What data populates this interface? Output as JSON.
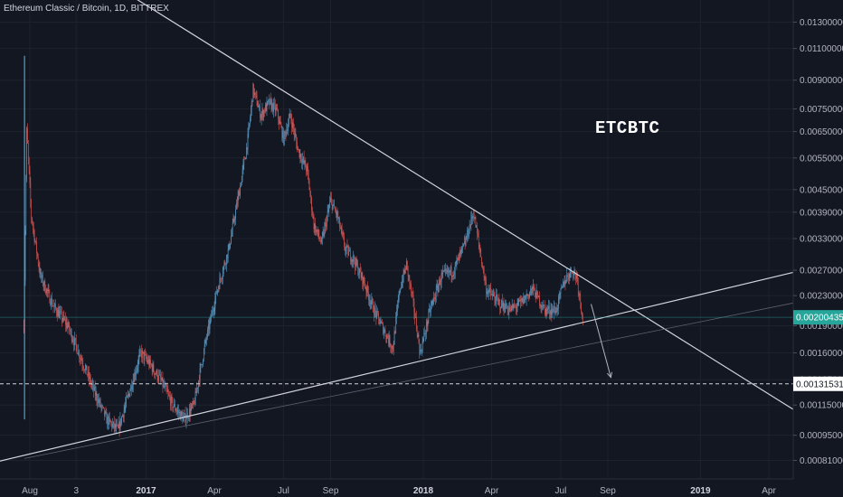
{
  "header": {
    "title": "Ethereum Classic / Bitcoin, 1D, BITTREX"
  },
  "annotation": "ETCBTC",
  "colors": {
    "background": "#131722",
    "up": "#5b9cc6",
    "down": "#d9534f",
    "trendline": "#d1d4dc",
    "price_tag": "#26a69a",
    "axis_text": "#b2b5be"
  },
  "chart_data": {
    "type": "candlestick",
    "symbol": "ETCBTC",
    "exchange": "BITTREX",
    "interval": "1D",
    "y_scale": "log",
    "yaxis_ticks": [
      "0.01300000",
      "0.01100000",
      "0.00900000",
      "0.00750000",
      "0.00650000",
      "0.00550000",
      "0.00450000",
      "0.00390000",
      "0.00330000",
      "0.00270000",
      "0.00230000",
      "0.00190000",
      "0.00160000",
      "0.00135000",
      "0.00115000",
      "0.00095000",
      "0.00081000"
    ],
    "yaxis_tick_values": [
      0.013,
      0.011,
      0.009,
      0.0075,
      0.0065,
      0.0055,
      0.0045,
      0.0039,
      0.0033,
      0.0027,
      0.0023,
      0.0019,
      0.0016,
      0.00135,
      0.00115,
      0.00095,
      0.00081
    ],
    "xaxis_ticks": [
      {
        "label": "Aug",
        "date": "2016-08-01",
        "bold": false
      },
      {
        "label": "3",
        "date": "2016-10-01",
        "bold": false
      },
      {
        "label": "2017",
        "date": "2017-01-01",
        "bold": true
      },
      {
        "label": "Apr",
        "date": "2017-04-01",
        "bold": false
      },
      {
        "label": "Jul",
        "date": "2017-07-01",
        "bold": false
      },
      {
        "label": "Sep",
        "date": "2017-09-01",
        "bold": false
      },
      {
        "label": "2018",
        "date": "2018-01-01",
        "bold": true
      },
      {
        "label": "Apr",
        "date": "2018-04-01",
        "bold": false
      },
      {
        "label": "Jul",
        "date": "2018-07-01",
        "bold": false
      },
      {
        "label": "Sep",
        "date": "2018-09-01",
        "bold": false
      },
      {
        "label": "2019",
        "date": "2019-01-01",
        "bold": true
      },
      {
        "label": "Apr",
        "date": "2019-04-01",
        "bold": false
      }
    ],
    "price_path": [
      [
        "2016-07-24",
        0.0019
      ],
      [
        "2016-07-28",
        0.0065
      ],
      [
        "2016-08-03",
        0.0038
      ],
      [
        "2016-08-15",
        0.0026
      ],
      [
        "2016-09-01",
        0.00215
      ],
      [
        "2016-09-20",
        0.0019
      ],
      [
        "2016-10-10",
        0.0015
      ],
      [
        "2016-10-25",
        0.00125
      ],
      [
        "2016-11-10",
        0.00105
      ],
      [
        "2016-11-25",
        0.00098
      ],
      [
        "2016-12-10",
        0.00125
      ],
      [
        "2016-12-25",
        0.0016
      ],
      [
        "2017-01-05",
        0.0015
      ],
      [
        "2017-01-20",
        0.00135
      ],
      [
        "2017-02-05",
        0.00115
      ],
      [
        "2017-02-20",
        0.00105
      ],
      [
        "2017-03-05",
        0.00115
      ],
      [
        "2017-03-20",
        0.0017
      ],
      [
        "2017-04-05",
        0.0024
      ],
      [
        "2017-04-20",
        0.0031
      ],
      [
        "2017-05-05",
        0.0046
      ],
      [
        "2017-05-15",
        0.0062
      ],
      [
        "2017-05-22",
        0.0085
      ],
      [
        "2017-06-01",
        0.0072
      ],
      [
        "2017-06-12",
        0.0078
      ],
      [
        "2017-06-22",
        0.0074
      ],
      [
        "2017-07-01",
        0.0062
      ],
      [
        "2017-07-10",
        0.0072
      ],
      [
        "2017-07-20",
        0.0058
      ],
      [
        "2017-08-01",
        0.0051
      ],
      [
        "2017-08-10",
        0.0036
      ],
      [
        "2017-08-20",
        0.0032
      ],
      [
        "2017-09-01",
        0.0042
      ],
      [
        "2017-09-10",
        0.0038
      ],
      [
        "2017-09-20",
        0.0031
      ],
      [
        "2017-10-01",
        0.0029
      ],
      [
        "2017-10-15",
        0.0025
      ],
      [
        "2017-10-28",
        0.0021
      ],
      [
        "2017-11-10",
        0.00185
      ],
      [
        "2017-11-22",
        0.00165
      ],
      [
        "2017-12-01",
        0.0024
      ],
      [
        "2017-12-10",
        0.0028
      ],
      [
        "2017-12-20",
        0.0021
      ],
      [
        "2017-12-28",
        0.0016
      ],
      [
        "2018-01-10",
        0.0021
      ],
      [
        "2018-01-25",
        0.0026
      ],
      [
        "2018-02-10",
        0.0027
      ],
      [
        "2018-02-25",
        0.0032
      ],
      [
        "2018-03-08",
        0.0039
      ],
      [
        "2018-03-15",
        0.0032
      ],
      [
        "2018-03-25",
        0.0024
      ],
      [
        "2018-04-10",
        0.0022
      ],
      [
        "2018-04-25",
        0.0021
      ],
      [
        "2018-05-10",
        0.0022
      ],
      [
        "2018-05-25",
        0.0024
      ],
      [
        "2018-06-10",
        0.0021
      ],
      [
        "2018-06-25",
        0.0021
      ],
      [
        "2018-07-05",
        0.0025
      ],
      [
        "2018-07-15",
        0.0027
      ],
      [
        "2018-07-22",
        0.0026
      ],
      [
        "2018-07-30",
        0.002
      ]
    ],
    "spike_high": {
      "date": "2016-07-25",
      "value": 0.0105
    },
    "lines": [
      {
        "name": "descending trendline",
        "from": [
          "2016-12-05",
          0.0157
        ],
        "to": [
          "2019-05-15",
          0.00108
        ]
      },
      {
        "name": "ascending trendline",
        "from": [
          "2016-06-10",
          0.000795
        ],
        "to": [
          "2019-05-15",
          0.0027
        ]
      },
      {
        "name": "faint support line",
        "from": [
          "2016-07-25",
          0.00082
        ],
        "to": [
          "2019-05-15",
          0.00222
        ]
      }
    ],
    "projection_arrow": {
      "from": [
        "2018-08-10",
        0.00218
      ],
      "to": [
        "2018-09-05",
        0.00137
      ]
    },
    "current_price": {
      "value": 0.00200435,
      "label": "0.00200435"
    },
    "horizontal_level": {
      "value": 0.00131531,
      "label": "0.00131531"
    },
    "xlabel": "",
    "ylabel": ""
  }
}
